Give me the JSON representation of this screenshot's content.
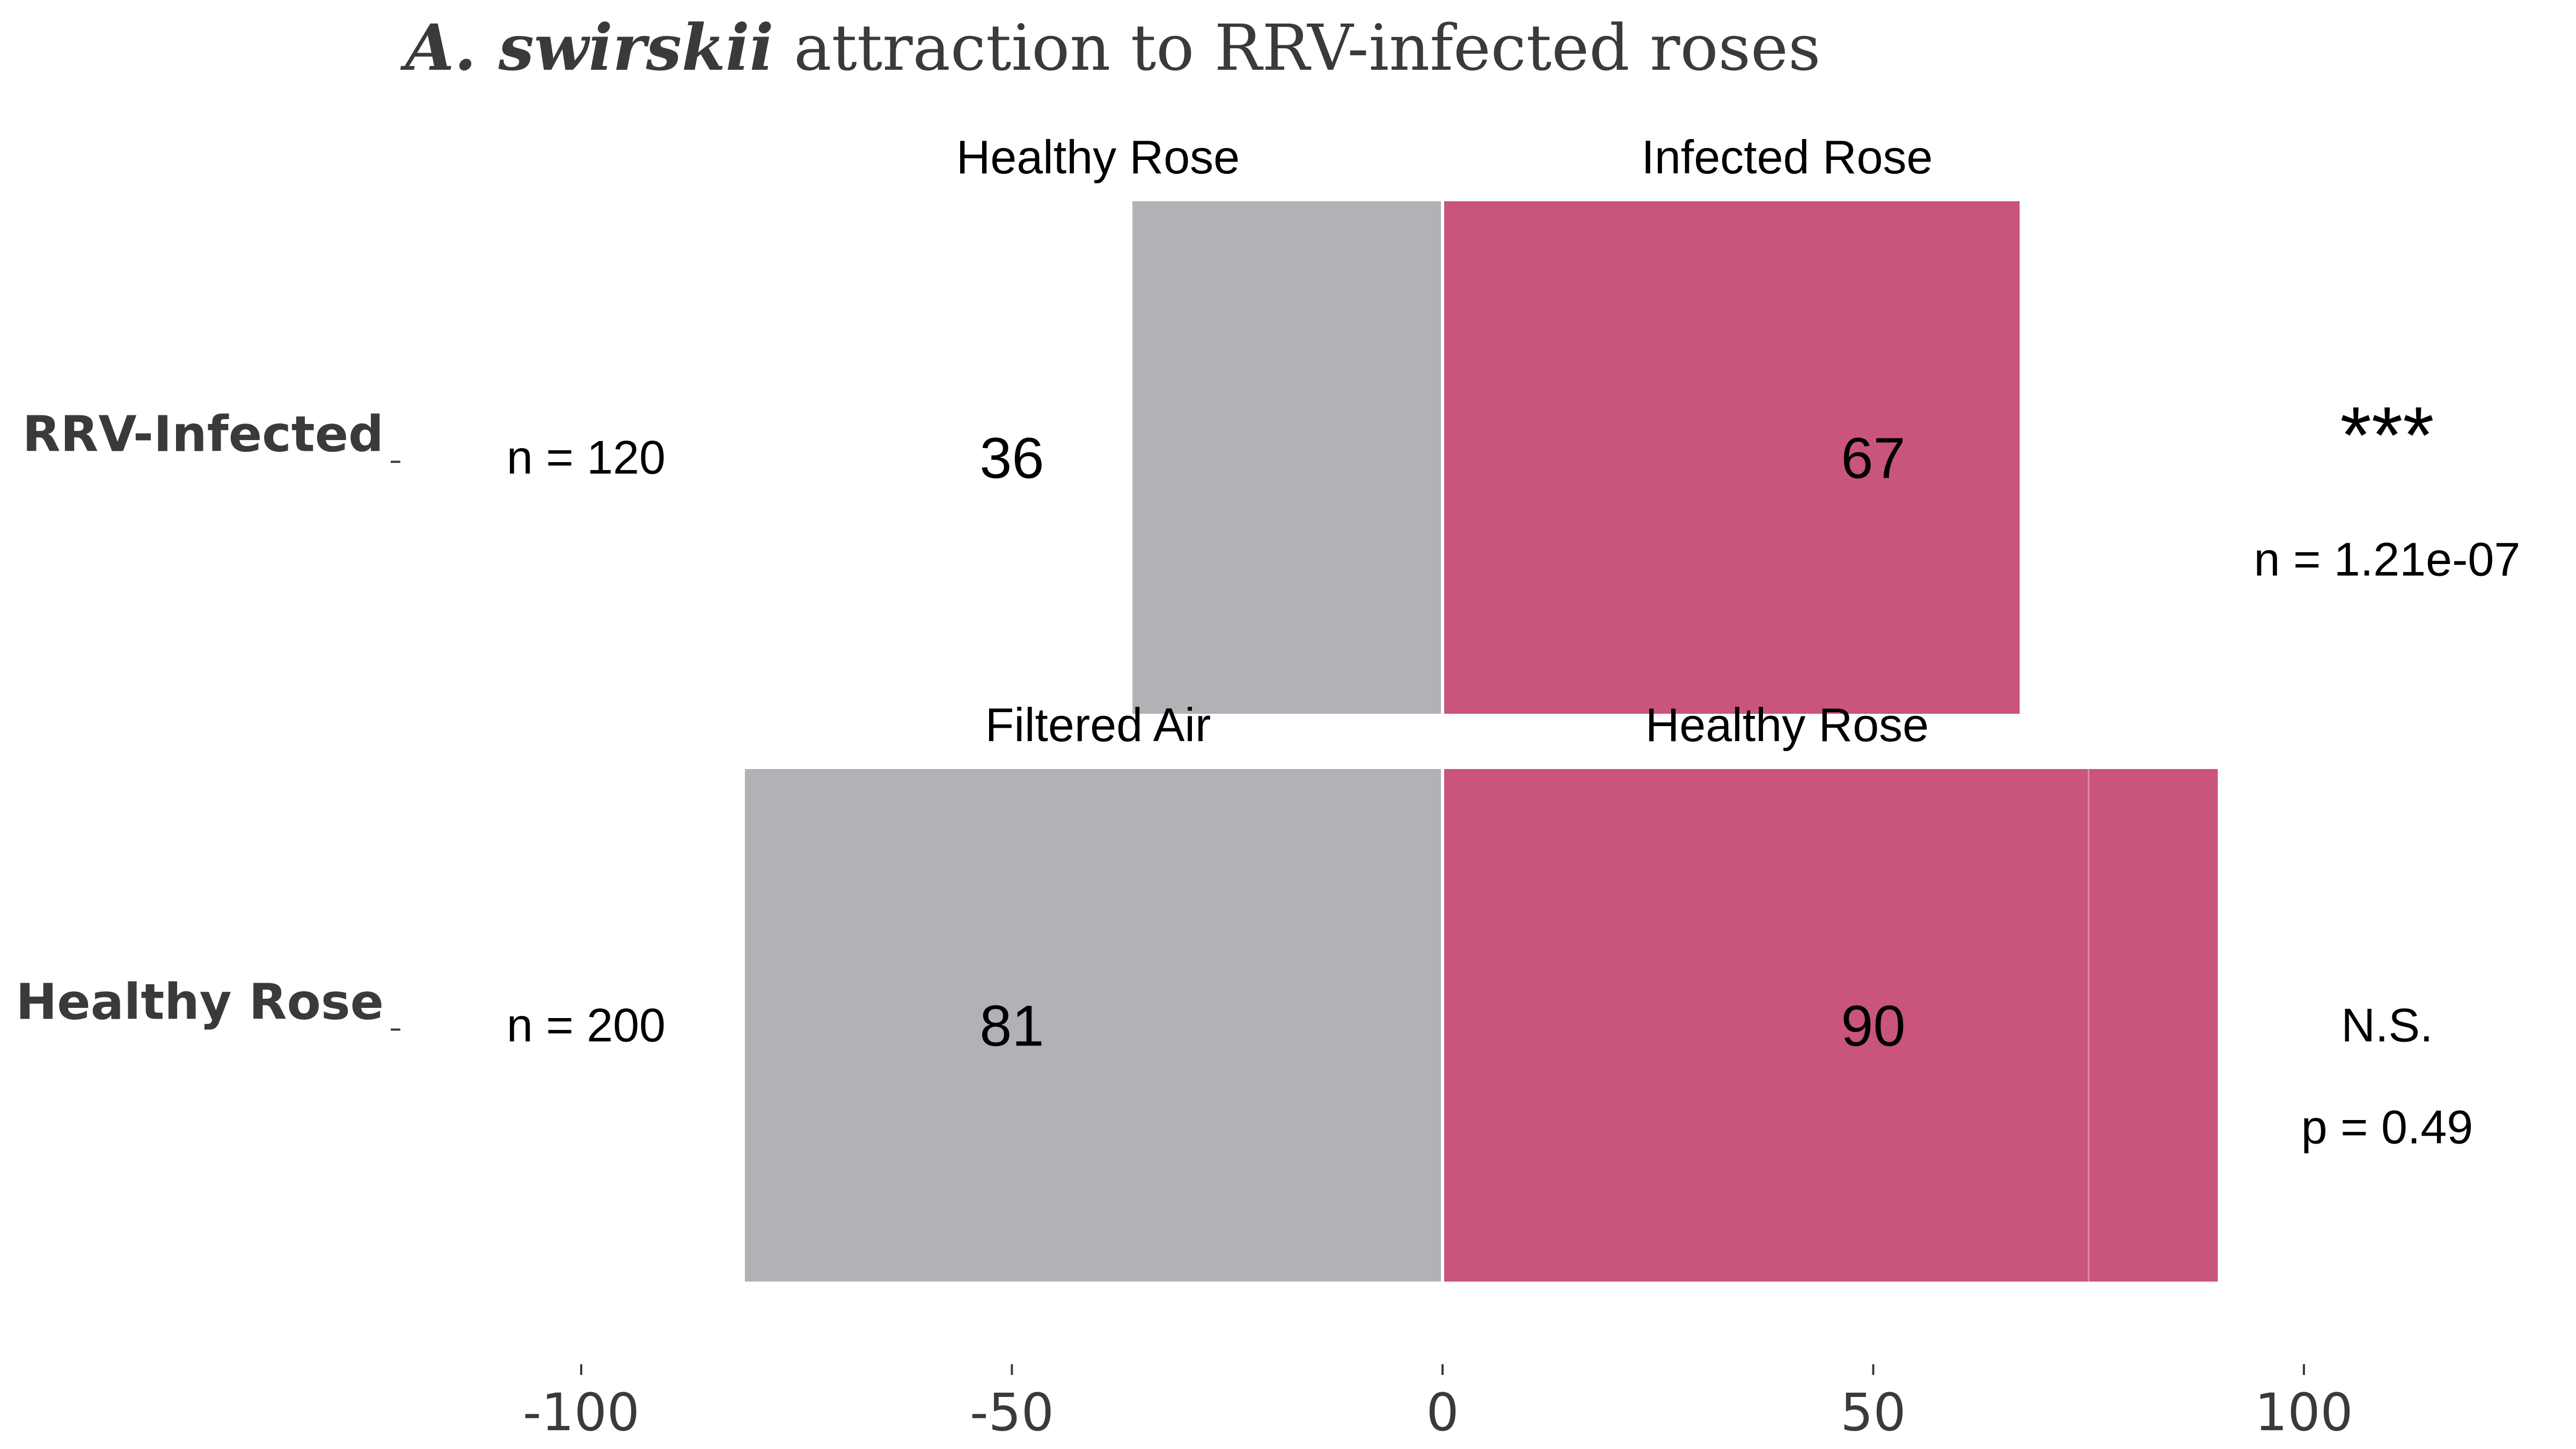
{
  "title": {
    "species": "A. swirskii",
    "rest": " attraction to RRV-infected roses"
  },
  "colors": {
    "left_bar": "#b1b2b5",
    "right_bar": "#c9547d",
    "text": "#000000",
    "axis_text": "#3a3a3a"
  },
  "chart_data": {
    "type": "bar",
    "orientation": "horizontal-diverging",
    "xlim": [
      -100,
      100
    ],
    "x_ticks": [
      -100,
      -50,
      0,
      50,
      100
    ],
    "x_tick_labels": [
      "-100",
      "-50",
      "0",
      "50",
      "100"
    ],
    "grid": false,
    "rows": [
      {
        "category": "RRV-Infected",
        "n_label": "n = 120",
        "left": {
          "label": "Healthy Rose",
          "value": -36,
          "count_label": "36"
        },
        "right": {
          "label": "Infected Rose",
          "value": 67,
          "count_label": "67"
        },
        "significance": "***",
        "stat_label": "n = 1.21e-07"
      },
      {
        "category": "Healthy Rose",
        "n_label": "n = 200",
        "left": {
          "label": "Filtered Air",
          "value": -81,
          "count_label": "81"
        },
        "right": {
          "label": "Healthy Rose",
          "value": 90,
          "count_label": "90",
          "segment_break": 75
        },
        "significance": "N.S.",
        "stat_label": "p = 0.49"
      }
    ]
  }
}
